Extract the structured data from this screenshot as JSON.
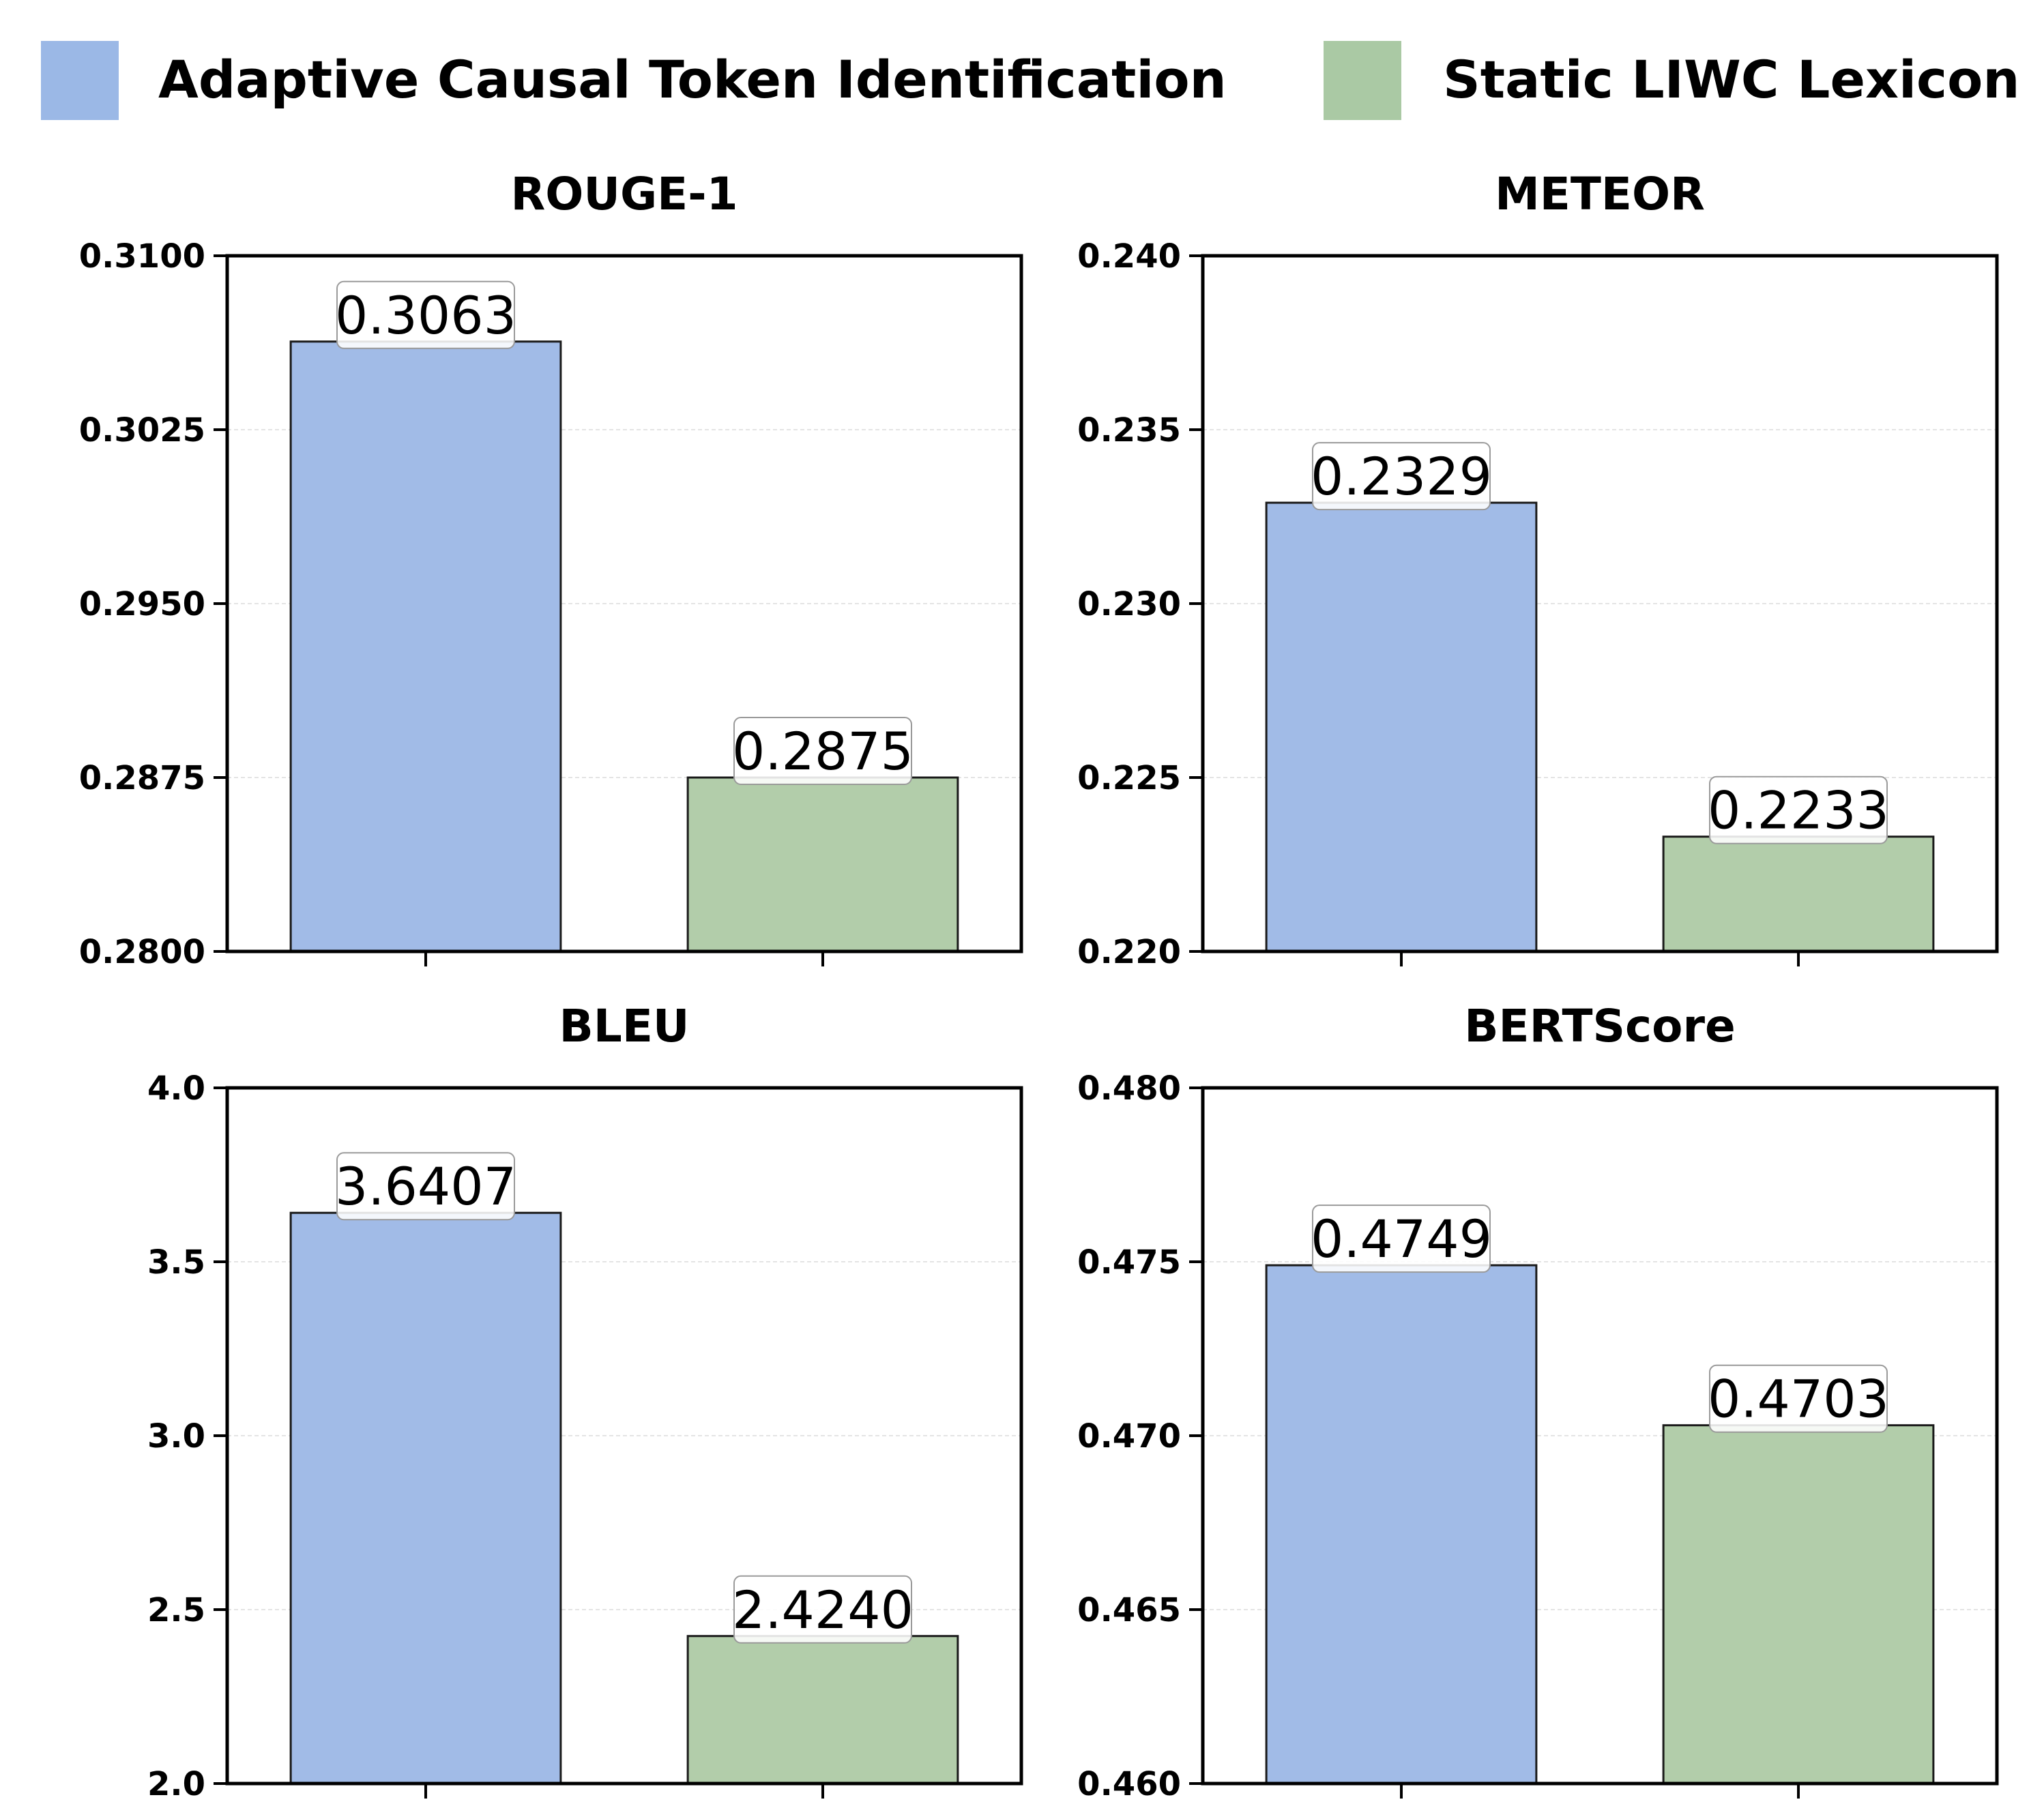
{
  "legend": [
    {
      "label": "Adaptive Causal Token Identification",
      "color": "#9bb8e6"
    },
    {
      "label": "Static LIWC Lexicon",
      "color": "#aac9a4"
    }
  ],
  "chart_data": [
    {
      "type": "bar",
      "title": "ROUGE-1",
      "categories": [
        "Adaptive Causal Token Identification",
        "Static LIWC Lexicon"
      ],
      "values": [
        0.3063,
        0.2875
      ],
      "value_labels": [
        "0.3063",
        "0.2875"
      ],
      "ylim": [
        0.28,
        0.31
      ],
      "yticks": [
        "0.2800",
        "0.2875",
        "0.2950",
        "0.3025",
        "0.3100"
      ],
      "ytick_values": [
        0.28,
        0.2875,
        0.295,
        0.3025,
        0.31
      ],
      "grid": true
    },
    {
      "type": "bar",
      "title": "METEOR",
      "categories": [
        "Adaptive Causal Token Identification",
        "Static LIWC Lexicon"
      ],
      "values": [
        0.2329,
        0.2233
      ],
      "value_labels": [
        "0.2329",
        "0.2233"
      ],
      "ylim": [
        0.22,
        0.24
      ],
      "yticks": [
        "0.220",
        "0.225",
        "0.230",
        "0.235",
        "0.240"
      ],
      "ytick_values": [
        0.22,
        0.225,
        0.23,
        0.235,
        0.24
      ],
      "grid": true
    },
    {
      "type": "bar",
      "title": "BLEU",
      "categories": [
        "Adaptive Causal Token Identification",
        "Static LIWC Lexicon"
      ],
      "values": [
        3.6407,
        2.424
      ],
      "value_labels": [
        "3.6407",
        "2.4240"
      ],
      "ylim": [
        2.0,
        4.0
      ],
      "yticks": [
        "2.0",
        "2.5",
        "3.0",
        "3.5",
        "4.0"
      ],
      "ytick_values": [
        2.0,
        2.5,
        3.0,
        3.5,
        4.0
      ],
      "grid": true
    },
    {
      "type": "bar",
      "title": "BERTScore",
      "categories": [
        "Adaptive Causal Token Identification",
        "Static LIWC Lexicon"
      ],
      "values": [
        0.4749,
        0.4703
      ],
      "value_labels": [
        "0.4749",
        "0.4703"
      ],
      "ylim": [
        0.46,
        0.48
      ],
      "yticks": [
        "0.460",
        "0.465",
        "0.470",
        "0.475",
        "0.480"
      ],
      "ytick_values": [
        0.46,
        0.465,
        0.47,
        0.475,
        0.48
      ],
      "grid": true
    }
  ]
}
